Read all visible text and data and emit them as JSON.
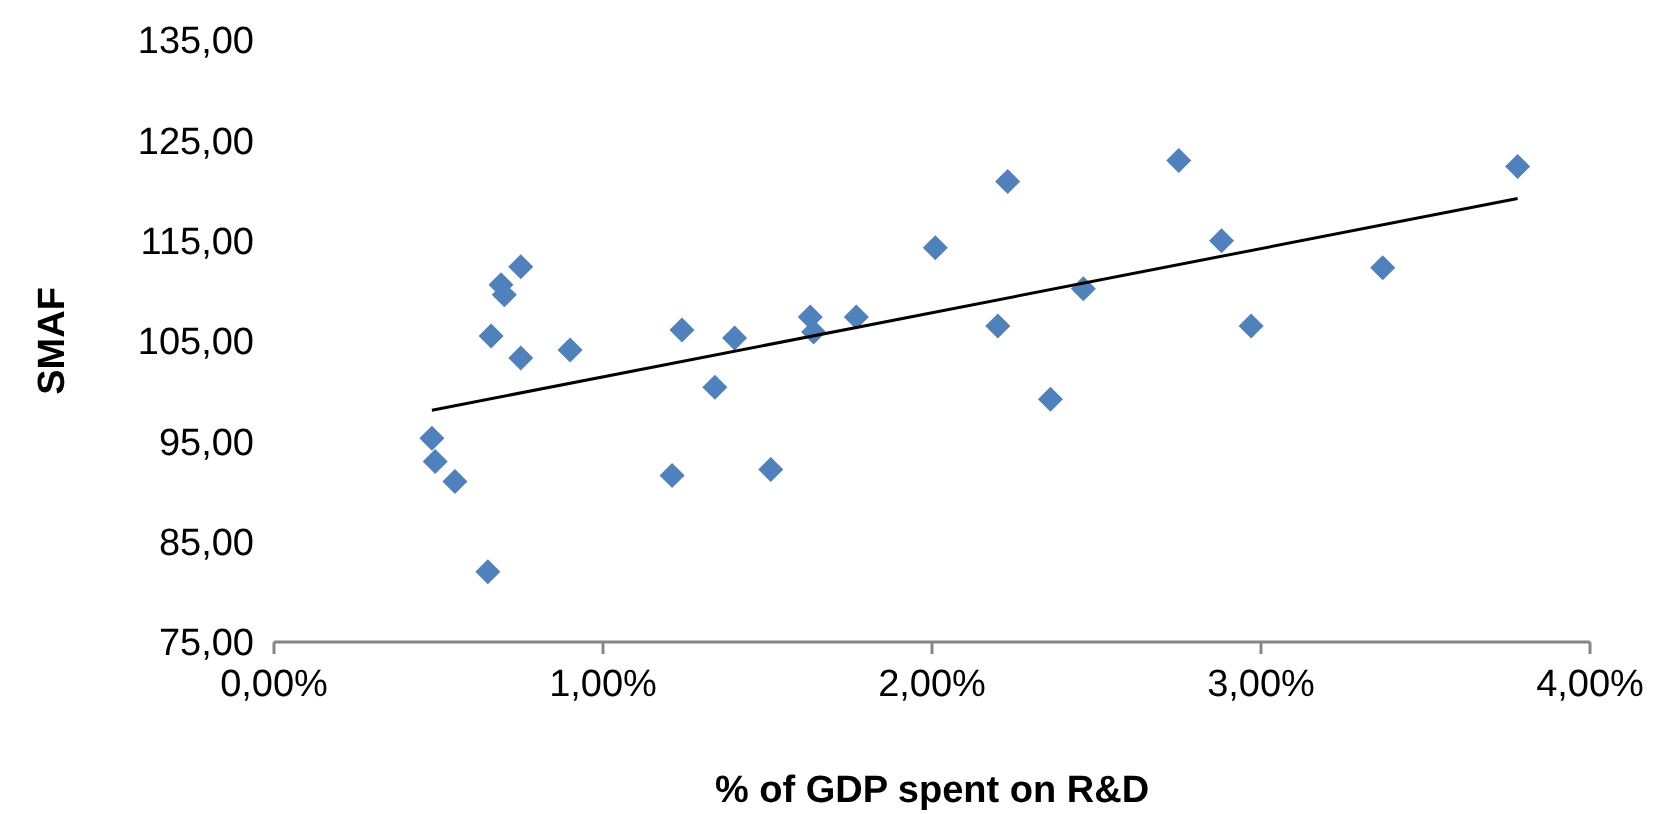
{
  "chart_data": {
    "type": "scatter",
    "xlabel": "% of GDP spent on R&D",
    "ylabel": "SMAF",
    "marker": "diamond",
    "grid": false,
    "xlim": [
      0,
      4
    ],
    "xticks": [
      {
        "value": 0,
        "label": "0,00%"
      },
      {
        "value": 1,
        "label": "1,00%"
      },
      {
        "value": 2,
        "label": "2,00%"
      },
      {
        "value": 3,
        "label": "3,00%"
      },
      {
        "value": 4,
        "label": "4,00%"
      }
    ],
    "ylim": [
      75,
      135
    ],
    "yticks": [
      {
        "value": 75,
        "label": "75,00"
      },
      {
        "value": 85,
        "label": "85,00"
      },
      {
        "value": 95,
        "label": "95,00"
      },
      {
        "value": 105,
        "label": "105,00"
      },
      {
        "value": 115,
        "label": "115,00"
      },
      {
        "value": 125,
        "label": "125,00"
      },
      {
        "value": 135,
        "label": "135,00"
      }
    ],
    "series": [
      {
        "color": "#4f81bd",
        "x": [
          0.48,
          0.49,
          0.55,
          0.65,
          0.66,
          0.69,
          0.7,
          0.75,
          0.75,
          0.9,
          1.21,
          1.24,
          1.34,
          1.4,
          1.51,
          1.63,
          1.64,
          1.77,
          2.01,
          2.2,
          2.23,
          2.36,
          2.46,
          2.75,
          2.88,
          2.97,
          3.37,
          3.78
        ],
        "values": [
          95.3,
          93.0,
          91.0,
          82.0,
          105.5,
          110.6,
          109.6,
          112.4,
          103.3,
          104.1,
          91.6,
          106.1,
          100.4,
          105.3,
          92.2,
          107.4,
          105.9,
          107.4,
          114.3,
          106.5,
          120.9,
          99.2,
          110.2,
          123.0,
          115.0,
          106.5,
          112.3,
          122.4
        ]
      },
      {
        "type": "line",
        "color": "#000000",
        "marker": "none",
        "x": [
          0.48,
          3.78
        ],
        "values": [
          98.1,
          119.2
        ]
      }
    ]
  }
}
